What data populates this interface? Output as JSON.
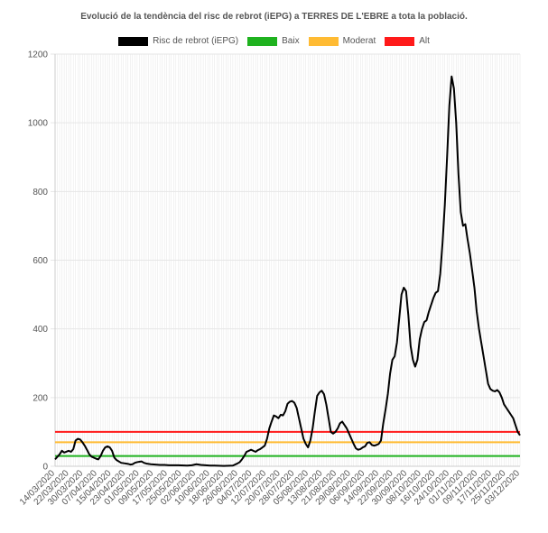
{
  "chart_data": {
    "type": "line",
    "title": "Evolució de la tendència del risc de rebrot (iEPG) a TERRES DE L'EBRE a tota la població.",
    "xlabel": "",
    "ylabel": "",
    "ylim": [
      0,
      1200
    ],
    "yticks": [
      "0",
      "200",
      "400",
      "600",
      "800",
      "1000",
      "1200"
    ],
    "grid": true,
    "legend_position": "top",
    "colors": {
      "risc": "#000000",
      "baix": "#1fb21f",
      "moderat": "#ffbb33",
      "alt": "#ff1a1a",
      "grid": "#e6e6e6"
    },
    "x_labels": [
      "14/03/2020",
      "22/03/2020",
      "30/03/2020",
      "07/04/2020",
      "15/04/2020",
      "23/04/2020",
      "01/05/2020",
      "09/05/2020",
      "17/05/2020",
      "25/05/2020",
      "02/06/2020",
      "10/06/2020",
      "18/06/2020",
      "26/06/2020",
      "04/07/2020",
      "12/07/2020",
      "20/07/2020",
      "28/07/2020",
      "05/08/2020",
      "13/08/2020",
      "21/08/2020",
      "29/08/2020",
      "06/09/2020",
      "14/09/2020",
      "22/09/2020",
      "30/09/2020",
      "08/10/2020",
      "16/10/2020",
      "24/10/2020",
      "01/11/2020",
      "09/11/2020",
      "17/11/2020",
      "25/11/2020",
      "03/12/2020"
    ],
    "series": [
      {
        "name": "Risc de rebrot (iEPG)",
        "color": "#000000",
        "points": [
          [
            0,
            20
          ],
          [
            2,
            35
          ],
          [
            3,
            45
          ],
          [
            4,
            40
          ],
          [
            6,
            45
          ],
          [
            7,
            42
          ],
          [
            8,
            50
          ],
          [
            9,
            75
          ],
          [
            10,
            80
          ],
          [
            11,
            78
          ],
          [
            12,
            70
          ],
          [
            13,
            60
          ],
          [
            14,
            48
          ],
          [
            15,
            35
          ],
          [
            16,
            28
          ],
          [
            17,
            25
          ],
          [
            18,
            22
          ],
          [
            19,
            20
          ],
          [
            20,
            30
          ],
          [
            21,
            45
          ],
          [
            22,
            55
          ],
          [
            23,
            58
          ],
          [
            24,
            55
          ],
          [
            25,
            45
          ],
          [
            26,
            25
          ],
          [
            27,
            18
          ],
          [
            28,
            14
          ],
          [
            29,
            10
          ],
          [
            30,
            9
          ],
          [
            32,
            7
          ],
          [
            33,
            5
          ],
          [
            34,
            6
          ],
          [
            35,
            10
          ],
          [
            36,
            12
          ],
          [
            37,
            13
          ],
          [
            38,
            14
          ],
          [
            39,
            10
          ],
          [
            40,
            8
          ],
          [
            42,
            6
          ],
          [
            44,
            5
          ],
          [
            46,
            4
          ],
          [
            48,
            4
          ],
          [
            50,
            3
          ],
          [
            54,
            3
          ],
          [
            58,
            2
          ],
          [
            60,
            3
          ],
          [
            62,
            6
          ],
          [
            64,
            4
          ],
          [
            66,
            3
          ],
          [
            68,
            2
          ],
          [
            70,
            2
          ],
          [
            74,
            1
          ],
          [
            78,
            2
          ],
          [
            80,
            8
          ],
          [
            81,
            12
          ],
          [
            82,
            20
          ],
          [
            83,
            30
          ],
          [
            84,
            42
          ],
          [
            85,
            45
          ],
          [
            86,
            48
          ],
          [
            87,
            45
          ],
          [
            88,
            42
          ],
          [
            89,
            47
          ],
          [
            90,
            50
          ],
          [
            91,
            55
          ],
          [
            92,
            60
          ],
          [
            93,
            80
          ],
          [
            94,
            110
          ],
          [
            95,
            130
          ],
          [
            96,
            148
          ],
          [
            97,
            145
          ],
          [
            98,
            140
          ],
          [
            99,
            150
          ],
          [
            100,
            148
          ],
          [
            101,
            160
          ],
          [
            102,
            182
          ],
          [
            103,
            188
          ],
          [
            104,
            190
          ],
          [
            105,
            185
          ],
          [
            106,
            170
          ],
          [
            107,
            140
          ],
          [
            108,
            110
          ],
          [
            109,
            80
          ],
          [
            110,
            65
          ],
          [
            111,
            55
          ],
          [
            112,
            75
          ],
          [
            113,
            110
          ],
          [
            114,
            160
          ],
          [
            115,
            205
          ],
          [
            116,
            215
          ],
          [
            117,
            220
          ],
          [
            118,
            210
          ],
          [
            119,
            180
          ],
          [
            120,
            140
          ],
          [
            121,
            100
          ],
          [
            122,
            95
          ],
          [
            123,
            100
          ],
          [
            124,
            110
          ],
          [
            125,
            125
          ],
          [
            126,
            130
          ],
          [
            127,
            120
          ],
          [
            128,
            110
          ],
          [
            129,
            95
          ],
          [
            130,
            80
          ],
          [
            131,
            65
          ],
          [
            132,
            52
          ],
          [
            133,
            48
          ],
          [
            134,
            50
          ],
          [
            135,
            55
          ],
          [
            136,
            58
          ],
          [
            137,
            68
          ],
          [
            138,
            70
          ],
          [
            139,
            62
          ],
          [
            140,
            60
          ],
          [
            141,
            62
          ],
          [
            142,
            65
          ],
          [
            143,
            75
          ],
          [
            144,
            125
          ],
          [
            145,
            165
          ],
          [
            146,
            210
          ],
          [
            147,
            270
          ],
          [
            148,
            310
          ],
          [
            149,
            320
          ],
          [
            150,
            360
          ],
          [
            151,
            430
          ],
          [
            152,
            500
          ],
          [
            153,
            520
          ],
          [
            154,
            510
          ],
          [
            155,
            440
          ],
          [
            156,
            350
          ],
          [
            157,
            310
          ],
          [
            158,
            290
          ],
          [
            159,
            310
          ],
          [
            160,
            370
          ],
          [
            161,
            400
          ],
          [
            162,
            420
          ],
          [
            163,
            425
          ],
          [
            164,
            450
          ],
          [
            165,
            470
          ],
          [
            166,
            490
          ],
          [
            167,
            505
          ],
          [
            168,
            510
          ],
          [
            169,
            560
          ],
          [
            170,
            650
          ],
          [
            171,
            760
          ],
          [
            172,
            900
          ],
          [
            173,
            1050
          ],
          [
            174,
            1135
          ],
          [
            175,
            1100
          ],
          [
            176,
            1000
          ],
          [
            177,
            850
          ],
          [
            178,
            740
          ],
          [
            179,
            700
          ],
          [
            180,
            705
          ],
          [
            181,
            660
          ],
          [
            182,
            620
          ],
          [
            183,
            570
          ],
          [
            184,
            520
          ],
          [
            185,
            450
          ],
          [
            186,
            400
          ],
          [
            187,
            360
          ],
          [
            188,
            320
          ],
          [
            189,
            280
          ],
          [
            190,
            240
          ],
          [
            191,
            225
          ],
          [
            192,
            220
          ],
          [
            193,
            218
          ],
          [
            194,
            222
          ],
          [
            195,
            215
          ],
          [
            196,
            200
          ],
          [
            197,
            180
          ],
          [
            198,
            170
          ],
          [
            199,
            160
          ],
          [
            200,
            150
          ],
          [
            201,
            140
          ],
          [
            202,
            120
          ],
          [
            203,
            100
          ],
          [
            204,
            90
          ]
        ]
      },
      {
        "name": "Baix",
        "color": "#1fb21f",
        "constant": 30
      },
      {
        "name": "Moderat",
        "color": "#ffbb33",
        "constant": 70
      },
      {
        "name": "Alt",
        "color": "#ff1a1a",
        "constant": 100
      }
    ]
  }
}
